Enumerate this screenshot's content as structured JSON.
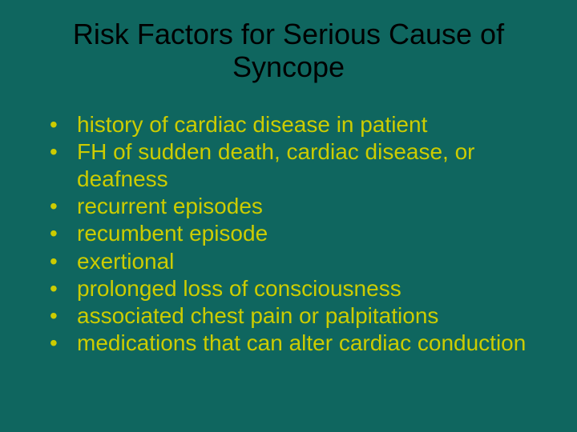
{
  "slide": {
    "title": "Risk Factors for Serious Cause of Syncope",
    "background_color": "#0f665f",
    "title_color": "#000000",
    "title_fontsize": 36,
    "bullet_color": "#cccc00",
    "bullet_fontsize": 28,
    "bullets": [
      "history of cardiac disease in patient",
      "FH of sudden death, cardiac disease, or deafness",
      "recurrent episodes",
      "recumbent episode",
      "exertional",
      "prolonged loss of consciousness",
      "associated chest pain or palpitations",
      "medications that can alter cardiac conduction"
    ]
  }
}
